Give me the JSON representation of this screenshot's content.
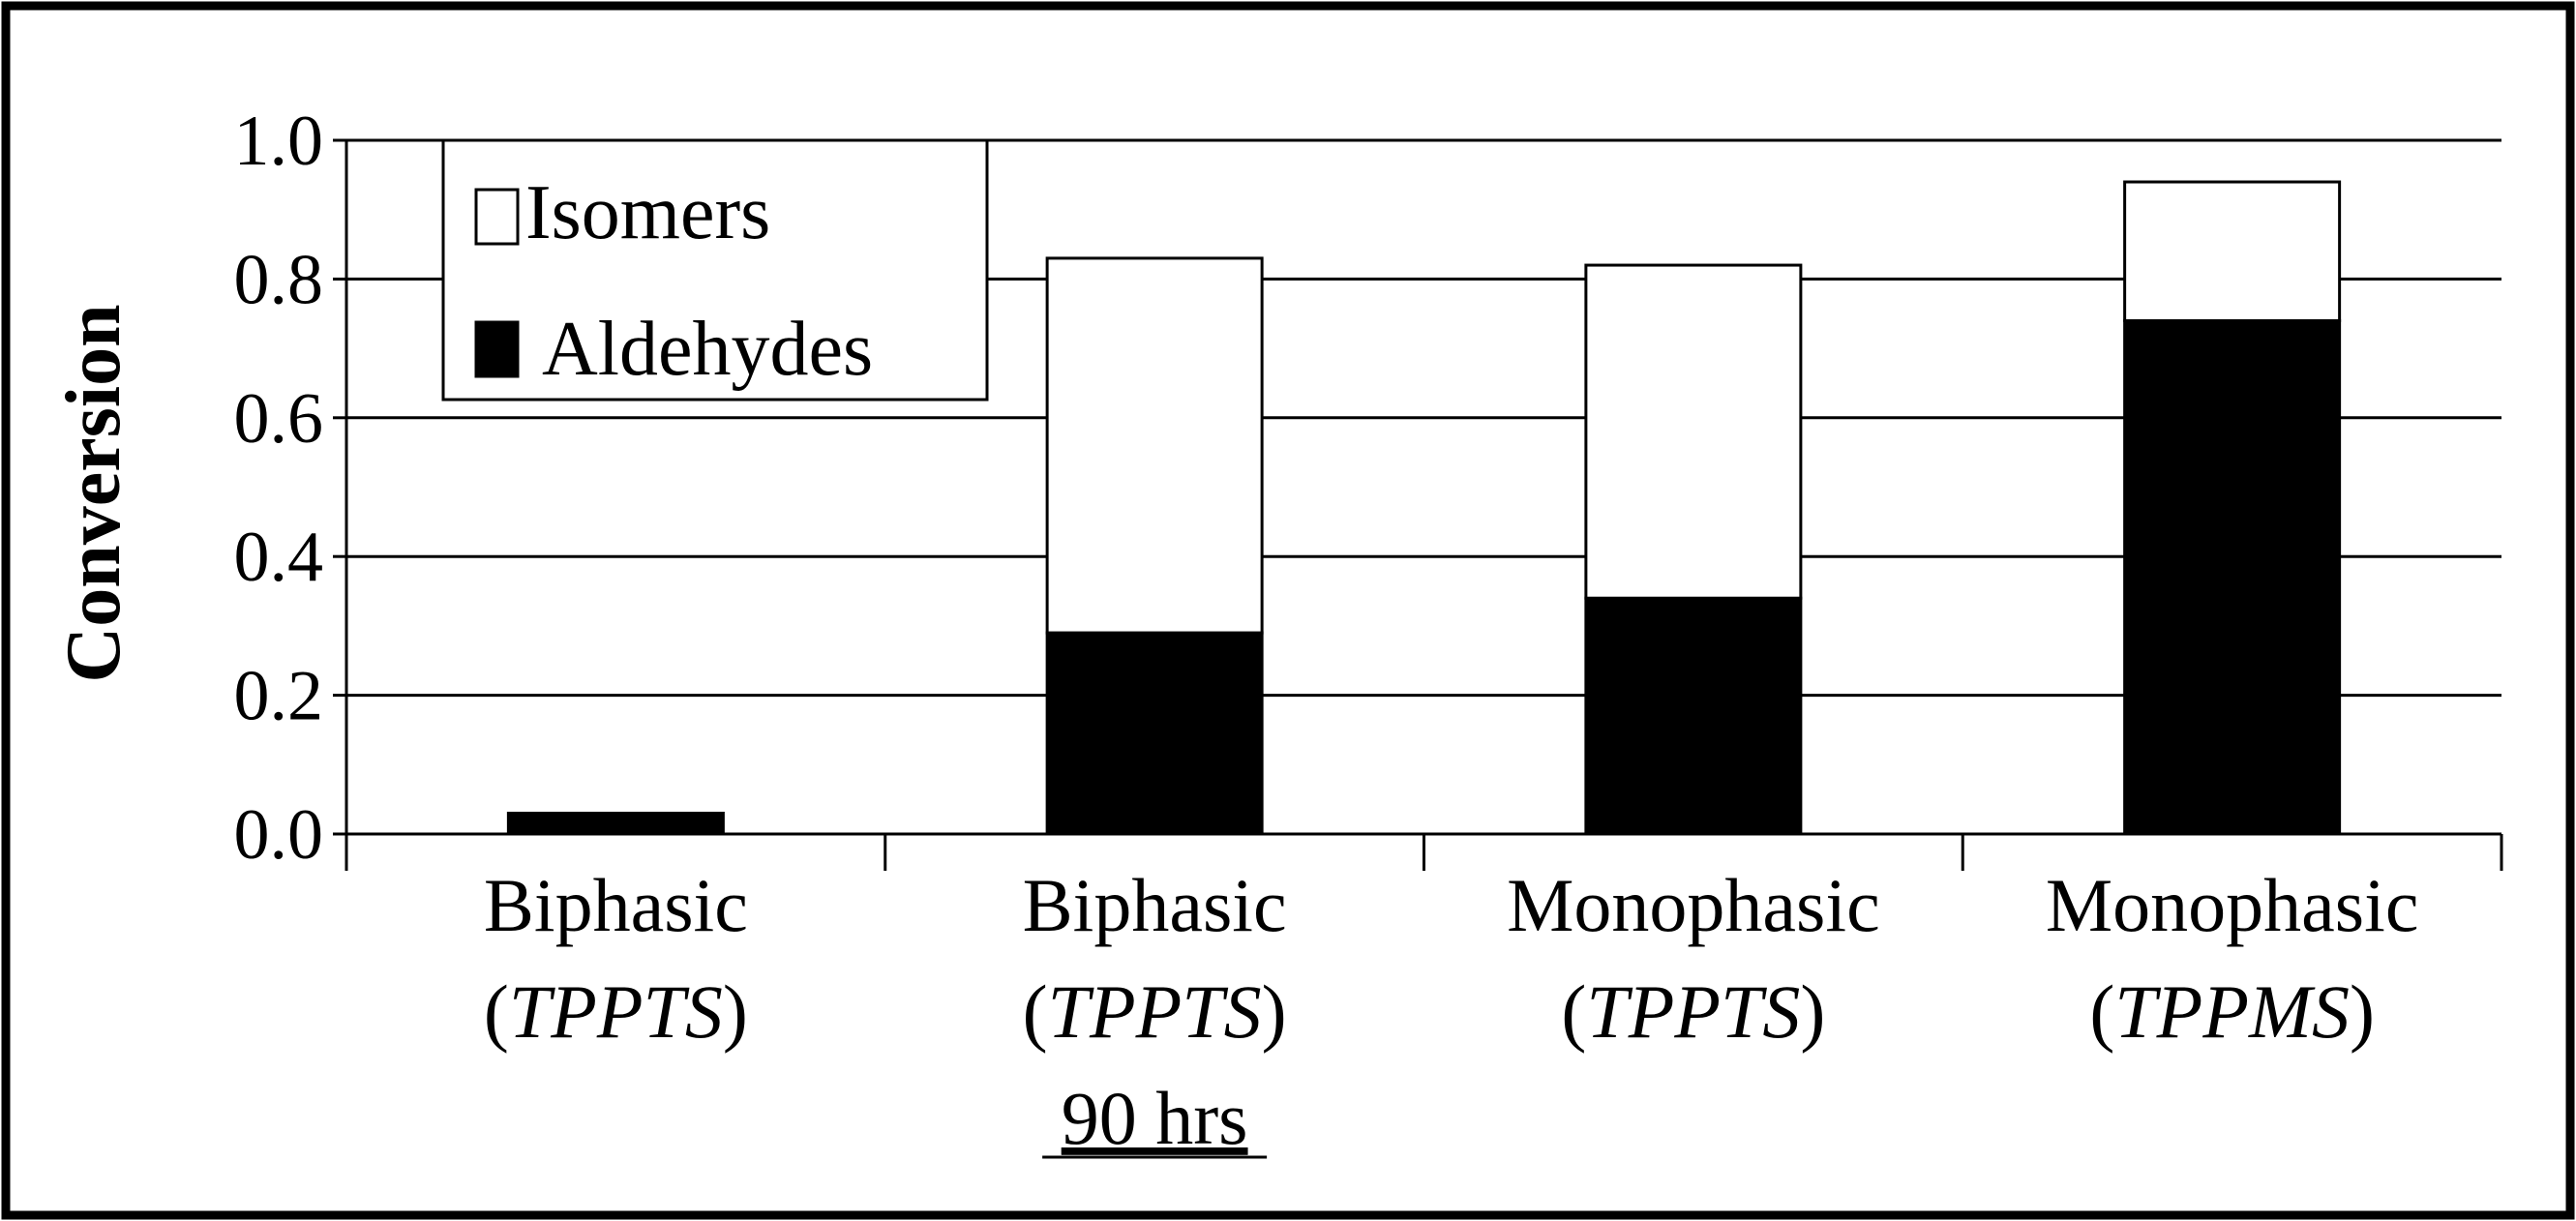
{
  "chart_data": {
    "type": "bar",
    "stacked": true,
    "title": "",
    "xlabel": "",
    "ylabel": "Conversion",
    "ylim": [
      0,
      1.0
    ],
    "yticks": [
      0.0,
      0.2,
      0.4,
      0.6,
      0.8,
      1.0
    ],
    "ytick_labels": [
      "0.0",
      "0.2",
      "0.4",
      "0.6",
      "0.8",
      "1.0"
    ],
    "grid": true,
    "legend_position": "top-left",
    "categories": [
      {
        "line1": "Biphasic",
        "line2_open": "(",
        "line2_italic": "TPPTS",
        "line2_close": ")",
        "line3": ""
      },
      {
        "line1": "Biphasic",
        "line2_open": "(",
        "line2_italic": "TPPTS",
        "line2_close": ")",
        "line3": "90 hrs"
      },
      {
        "line1": "Monophasic",
        "line2_open": "(",
        "line2_italic": "TPPTS",
        "line2_close": ")",
        "line3": ""
      },
      {
        "line1": "Monophasic",
        "line2_open": "(",
        "line2_italic": "TPPMS",
        "line2_close": ")",
        "line3": ""
      }
    ],
    "series": [
      {
        "name": "Aldehydes",
        "color": "#000000",
        "values": [
          0.03,
          0.29,
          0.34,
          0.74
        ]
      },
      {
        "name": "Isomers",
        "color": "#ffffff",
        "values": [
          0.0,
          0.54,
          0.48,
          0.2
        ]
      }
    ],
    "legend": [
      {
        "label": "Isomers",
        "color": "#ffffff"
      },
      {
        "label": "Aldehydes",
        "color": "#000000"
      }
    ]
  }
}
